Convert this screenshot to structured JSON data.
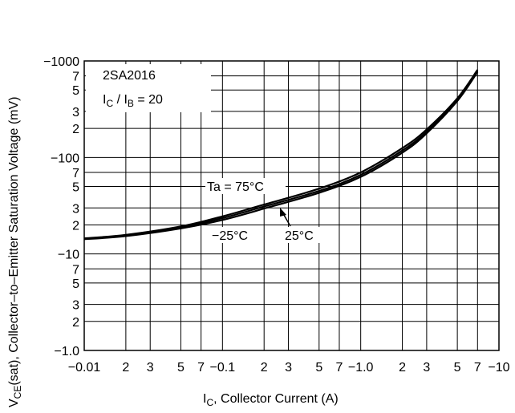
{
  "chart_data": {
    "type": "line",
    "xscale": "log",
    "yscale": "log",
    "xlim": [
      -0.01,
      -10
    ],
    "ylim": [
      -1.0,
      -1000
    ],
    "grid": true,
    "xlabel": {
      "main": "I",
      "sub": "C",
      "rest": ", Collector Current (A)"
    },
    "ylabel": {
      "main": "V",
      "sub": "CE",
      "rest": "(sat), Collector–to–Emitter Saturation Voltage (mV)"
    },
    "x_tick_labels": [
      {
        "v": -0.01,
        "t": "−0.01"
      },
      {
        "v": -0.02,
        "t": "2"
      },
      {
        "v": -0.03,
        "t": "3"
      },
      {
        "v": -0.05,
        "t": "5"
      },
      {
        "v": -0.07,
        "t": "7"
      },
      {
        "v": -0.1,
        "t": "−0.1"
      },
      {
        "v": -0.2,
        "t": "2"
      },
      {
        "v": -0.3,
        "t": "3"
      },
      {
        "v": -0.5,
        "t": "5"
      },
      {
        "v": -0.7,
        "t": "7"
      },
      {
        "v": -1.0,
        "t": "−1.0"
      },
      {
        "v": -2,
        "t": "2"
      },
      {
        "v": -3,
        "t": "3"
      },
      {
        "v": -5,
        "t": "5"
      },
      {
        "v": -7,
        "t": "7"
      },
      {
        "v": -10,
        "t": "−10"
      }
    ],
    "y_tick_labels": [
      {
        "v": -1.0,
        "t": "−1.0"
      },
      {
        "v": -2,
        "t": "2"
      },
      {
        "v": -3,
        "t": "3"
      },
      {
        "v": -5,
        "t": "5"
      },
      {
        "v": -7,
        "t": "7"
      },
      {
        "v": -10,
        "t": "−10"
      },
      {
        "v": -20,
        "t": "2"
      },
      {
        "v": -30,
        "t": "3"
      },
      {
        "v": -50,
        "t": "5"
      },
      {
        "v": -70,
        "t": "7"
      },
      {
        "v": -100,
        "t": "−100"
      },
      {
        "v": -200,
        "t": "2"
      },
      {
        "v": -300,
        "t": "3"
      },
      {
        "v": -500,
        "t": "5"
      },
      {
        "v": -700,
        "t": "7"
      },
      {
        "v": -1000,
        "t": "−1000"
      }
    ],
    "annotation": {
      "part": "2SA2016",
      "cond_main": "I",
      "cond_sub1": "C",
      "cond_mid": " / I",
      "cond_sub2": "B",
      "cond_rest": " = 20"
    },
    "series": [
      {
        "name": "Ta = 75°C",
        "x": [
          -0.01,
          -0.02,
          -0.05,
          -0.1,
          -0.2,
          -0.5,
          -1.0,
          -2,
          -3,
          -5,
          -7
        ],
        "y": [
          -14.5,
          -15.8,
          -19.3,
          -24.5,
          -32.5,
          -47.5,
          -70,
          -125,
          -195,
          -410,
          -810
        ]
      },
      {
        "name": "25°C",
        "x": [
          -0.01,
          -0.02,
          -0.05,
          -0.1,
          -0.2,
          -0.5,
          -1.0,
          -2,
          -3,
          -5,
          -7
        ],
        "y": [
          -14.3,
          -15.5,
          -18.8,
          -23.5,
          -31,
          -45,
          -66,
          -118,
          -185,
          -395,
          -790
        ]
      },
      {
        "name": "−25°C",
        "x": [
          -0.01,
          -0.02,
          -0.05,
          -0.1,
          -0.2,
          -0.5,
          -1.0,
          -2,
          -3,
          -5,
          -7
        ],
        "y": [
          -14.2,
          -15.3,
          -18.4,
          -22.5,
          -29.5,
          -43,
          -63,
          -112,
          -178,
          -385,
          -770
        ]
      }
    ],
    "series_labels": [
      "Ta = 75°C",
      "−25°C",
      "25°C"
    ]
  }
}
